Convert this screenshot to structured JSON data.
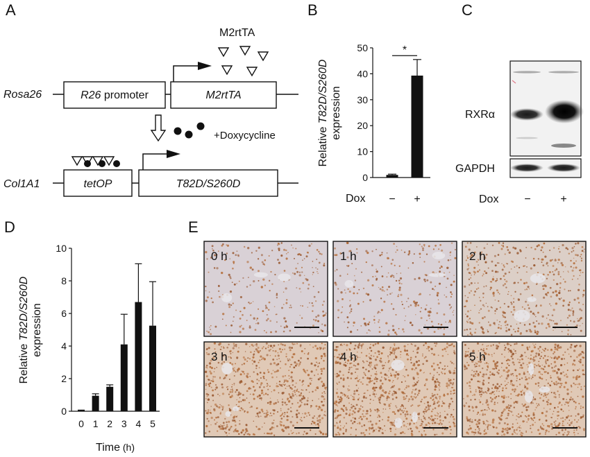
{
  "panels": {
    "A": {
      "letter": "A",
      "m2rtta_label": "M2rtTA",
      "rosa_label": "Rosa26",
      "r26_italic": "R26",
      "r26_rest": " promoter",
      "m2rtta_box": "M2rtTA",
      "doxy_label": "+Doxycycline",
      "col_label": "Col1A1",
      "tetop_box": "tetOP",
      "t82_box": "T82D/S260D"
    },
    "B": {
      "letter": "B",
      "ylabel_line1_pre": "Relative ",
      "ylabel_line1_italic": "T82D/S260D",
      "ylabel_line2": "expression",
      "dox_label": "Dox",
      "significance": "*"
    },
    "C": {
      "letter": "C",
      "rxra_label": "RXRα",
      "gapdh_label": "GAPDH",
      "dox_label": "Dox",
      "lanes": [
        "−",
        "+"
      ]
    },
    "D": {
      "letter": "D",
      "ylabel_line1_pre": "Relative ",
      "ylabel_line1_italic": "T82D/S260D",
      "ylabel_line2": "expression",
      "xlabel_main": "Time",
      "xlabel_unit": " (h)"
    },
    "E": {
      "letter": "E",
      "tiles": [
        {
          "label": "0 h",
          "density": 0.8
        },
        {
          "label": "1 h",
          "density": 1.0
        },
        {
          "label": "2 h",
          "density": 2.0
        },
        {
          "label": "3 h",
          "density": 3.6
        },
        {
          "label": "4 h",
          "density": 4.2
        },
        {
          "label": "5 h",
          "density": 4.2
        }
      ]
    }
  },
  "chart_data": [
    {
      "panel": "B",
      "type": "bar",
      "categories": [
        "−",
        "+"
      ],
      "values": [
        1,
        39.3
      ],
      "errors": [
        0.3,
        6.2
      ],
      "ylim": [
        0,
        50
      ],
      "yticks": [
        0,
        10,
        20,
        30,
        40,
        50
      ],
      "xlabel": "Dox",
      "ylabel": "Relative T82D/S260D expression",
      "annotation": "*"
    },
    {
      "panel": "D",
      "type": "bar",
      "categories": [
        "0",
        "1",
        "2",
        "3",
        "4",
        "5"
      ],
      "values": [
        0.05,
        0.95,
        1.5,
        4.1,
        6.7,
        5.25
      ],
      "errors": [
        0.02,
        0.12,
        0.12,
        1.85,
        2.35,
        2.7
      ],
      "ylim": [
        0,
        10
      ],
      "yticks": [
        0,
        2,
        4,
        6,
        8,
        10
      ],
      "xlabel": "Time (h)",
      "ylabel": "Relative T82D/S260D expression"
    }
  ]
}
